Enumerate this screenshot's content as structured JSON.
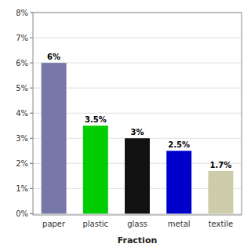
{
  "chart_data": {
    "type": "bar",
    "xlabel": "Fraction",
    "categories": [
      "paper",
      "plastic",
      "glass",
      "metal",
      "textile"
    ],
    "values": [
      6.0,
      3.5,
      3.0,
      2.5,
      1.7
    ],
    "value_labels": [
      "6%",
      "3.5%",
      "3%",
      "2.5%",
      "1.7%"
    ],
    "data_labels": true,
    "colors": [
      "#7777aa",
      "#00cc00",
      "#111111",
      "#0000cc",
      "#ccccaa"
    ],
    "ylim": [
      -0.05,
      8
    ],
    "yticks": [
      {
        "value": 0,
        "label": "0%"
      },
      {
        "value": 1,
        "label": "1%"
      },
      {
        "value": 2,
        "label": "2%"
      },
      {
        "value": 3,
        "label": "3%"
      },
      {
        "value": 4,
        "label": "4%"
      },
      {
        "value": 5,
        "label": "5%"
      },
      {
        "value": 6,
        "label": "6%"
      },
      {
        "value": 7,
        "label": "7%"
      },
      {
        "value": 8,
        "label": "8%"
      }
    ],
    "grid": true
  }
}
